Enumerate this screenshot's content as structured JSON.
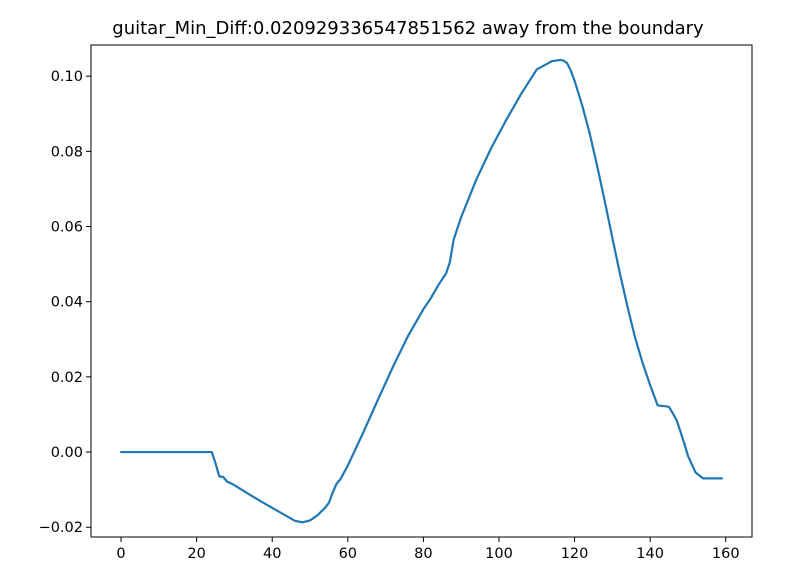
{
  "chart_data": {
    "type": "line",
    "title": "guitar_Min_Diff:0.020929336547851562 away from the boundary",
    "xlabel": "",
    "ylabel": "",
    "xlim": [
      -7.95,
      166.95
    ],
    "ylim": [
      -0.0226,
      0.1083
    ],
    "grid": false,
    "xticks": [
      0,
      20,
      40,
      60,
      80,
      100,
      120,
      140,
      160
    ],
    "xtick_labels": [
      "0",
      "20",
      "40",
      "60",
      "80",
      "100",
      "120",
      "140",
      "160"
    ],
    "yticks": [
      -0.02,
      0.0,
      0.02,
      0.04,
      0.06,
      0.08,
      0.1
    ],
    "ytick_labels": [
      "−0.02",
      "0.00",
      "0.02",
      "0.04",
      "0.06",
      "0.08",
      "0.10"
    ],
    "series": [
      {
        "color": "#1f77b4",
        "x": [
          0,
          5,
          10,
          15,
          20,
          22,
          23,
          24,
          25,
          26,
          27,
          28,
          30,
          34,
          38,
          42,
          46,
          48,
          50,
          52,
          54,
          55,
          56,
          57,
          58,
          60,
          64,
          68,
          72,
          76,
          80,
          82,
          84,
          85,
          86,
          87,
          88,
          90,
          94,
          98,
          102,
          106,
          110,
          114,
          116,
          117,
          118,
          119,
          120,
          122,
          124,
          126,
          128,
          130,
          132,
          134,
          136,
          138,
          140,
          142,
          144,
          145,
          146,
          147,
          148,
          149,
          150,
          152,
          154,
          156,
          158,
          159
        ],
        "y": [
          0.0,
          0.0,
          0.0,
          0.0,
          0.0,
          0.0,
          0.0,
          0.0,
          -0.003,
          -0.0065,
          -0.0066,
          -0.0078,
          -0.0088,
          -0.0113,
          -0.0137,
          -0.016,
          -0.0183,
          -0.0187,
          -0.0182,
          -0.0168,
          -0.0148,
          -0.0135,
          -0.0108,
          -0.0085,
          -0.0073,
          -0.0036,
          0.005,
          0.014,
          0.0228,
          0.031,
          0.038,
          0.041,
          0.0445,
          0.046,
          0.0475,
          0.0505,
          0.0565,
          0.0625,
          0.0725,
          0.081,
          0.0885,
          0.0955,
          0.1018,
          0.104,
          0.1043,
          0.1042,
          0.1035,
          0.1015,
          0.0988,
          0.0923,
          0.0848,
          0.076,
          0.0667,
          0.057,
          0.0475,
          0.0387,
          0.0305,
          0.0237,
          0.0178,
          0.0124,
          0.0122,
          0.012,
          0.0103,
          0.0085,
          0.0055,
          0.0024,
          -0.001,
          -0.0054,
          -0.007,
          -0.007,
          -0.007,
          -0.007
        ]
      }
    ]
  }
}
